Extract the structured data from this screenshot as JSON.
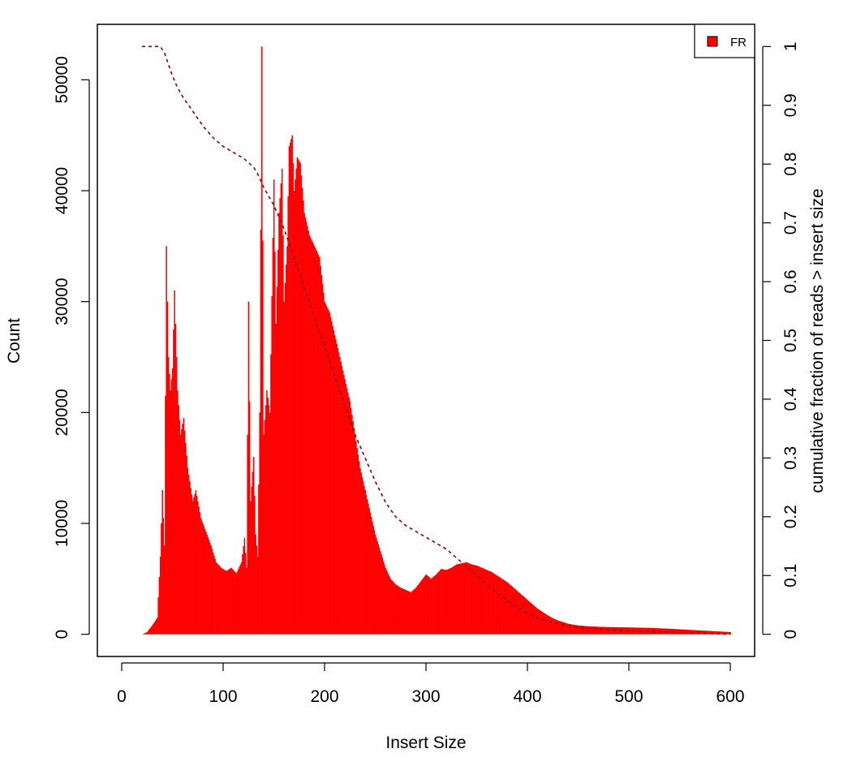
{
  "chart_data": {
    "type": "bar",
    "xlabel": "Insert Size",
    "ylabel": "Count",
    "y2label": "cumulative fraction of reads > insert size",
    "xlim": [
      -24,
      624
    ],
    "ylim": [
      -2000,
      55000
    ],
    "y2lim": [
      0,
      1
    ],
    "x_ticks": [
      0,
      100,
      200,
      300,
      400,
      500,
      600
    ],
    "y_ticks": [
      0,
      10000,
      20000,
      30000,
      40000,
      50000
    ],
    "y2_ticks": [
      0,
      0.1,
      0.2,
      0.3,
      0.4,
      0.5,
      0.6,
      0.7,
      0.8,
      0.9,
      1
    ],
    "x_tick_labels": [
      "0",
      "100",
      "200",
      "300",
      "400",
      "500",
      "600"
    ],
    "y_tick_labels": [
      "0",
      "10000",
      "20000",
      "30000",
      "40000",
      "50000"
    ],
    "y2_tick_labels": [
      "0",
      "0.1",
      "0.2",
      "0.3",
      "0.4",
      "0.5",
      "0.6",
      "0.7",
      "0.8",
      "0.9",
      "1"
    ],
    "legend": {
      "position": "top-right",
      "entries": [
        {
          "label": "FR",
          "color": "#ff0000"
        }
      ]
    },
    "bar_color": "#ff0000",
    "cumulative_color": "#8b0000",
    "histogram": {
      "name": "FR",
      "points": [
        [
          20,
          0
        ],
        [
          25,
          200
        ],
        [
          30,
          800
        ],
        [
          35,
          1500
        ],
        [
          38,
          7000
        ],
        [
          40,
          13000
        ],
        [
          42,
          8000
        ],
        [
          44,
          35000
        ],
        [
          46,
          25000
        ],
        [
          48,
          22000
        ],
        [
          50,
          24000
        ],
        [
          52,
          31000
        ],
        [
          55,
          22000
        ],
        [
          58,
          18000
        ],
        [
          61,
          19500
        ],
        [
          65,
          15000
        ],
        [
          70,
          12000
        ],
        [
          73,
          13000
        ],
        [
          78,
          10500
        ],
        [
          82,
          9500
        ],
        [
          88,
          8000
        ],
        [
          93,
          6500
        ],
        [
          98,
          6000
        ],
        [
          103,
          5700
        ],
        [
          108,
          6000
        ],
        [
          113,
          5500
        ],
        [
          118,
          6500
        ],
        [
          121,
          8700
        ],
        [
          123,
          6000
        ],
        [
          125,
          30000
        ],
        [
          127,
          12000
        ],
        [
          130,
          16000
        ],
        [
          132,
          9000
        ],
        [
          134,
          7000
        ],
        [
          136,
          20000
        ],
        [
          138,
          53000
        ],
        [
          140,
          18000
        ],
        [
          143,
          22000
        ],
        [
          146,
          20000
        ],
        [
          150,
          41000
        ],
        [
          152,
          28000
        ],
        [
          155,
          38000
        ],
        [
          158,
          42000
        ],
        [
          160,
          30000
        ],
        [
          163,
          35000
        ],
        [
          165,
          44000
        ],
        [
          168,
          45000
        ],
        [
          170,
          40000
        ],
        [
          173,
          43000
        ],
        [
          176,
          42500
        ],
        [
          180,
          38000
        ],
        [
          185,
          36000
        ],
        [
          190,
          35000
        ],
        [
          195,
          34000
        ],
        [
          200,
          30000
        ],
        [
          205,
          29000
        ],
        [
          210,
          27000
        ],
        [
          215,
          25000
        ],
        [
          220,
          23000
        ],
        [
          225,
          21000
        ],
        [
          230,
          18000
        ],
        [
          235,
          15000
        ],
        [
          240,
          13000
        ],
        [
          245,
          11000
        ],
        [
          250,
          9000
        ],
        [
          255,
          7500
        ],
        [
          260,
          6000
        ],
        [
          265,
          5000
        ],
        [
          270,
          4500
        ],
        [
          275,
          4200
        ],
        [
          280,
          4000
        ],
        [
          285,
          3800
        ],
        [
          290,
          4200
        ],
        [
          295,
          4800
        ],
        [
          300,
          5400
        ],
        [
          305,
          5000
        ],
        [
          310,
          5400
        ],
        [
          315,
          5900
        ],
        [
          320,
          5800
        ],
        [
          325,
          6000
        ],
        [
          330,
          6300
        ],
        [
          335,
          6400
        ],
        [
          340,
          6500
        ],
        [
          345,
          6300
        ],
        [
          350,
          6200
        ],
        [
          355,
          6000
        ],
        [
          360,
          5800
        ],
        [
          365,
          5600
        ],
        [
          370,
          5300
        ],
        [
          375,
          5000
        ],
        [
          380,
          4700
        ],
        [
          385,
          4300
        ],
        [
          390,
          3900
        ],
        [
          395,
          3500
        ],
        [
          400,
          3100
        ],
        [
          405,
          2700
        ],
        [
          410,
          2300
        ],
        [
          415,
          2000
        ],
        [
          420,
          1700
        ],
        [
          425,
          1450
        ],
        [
          430,
          1250
        ],
        [
          435,
          1100
        ],
        [
          440,
          950
        ],
        [
          445,
          870
        ],
        [
          450,
          800
        ],
        [
          460,
          720
        ],
        [
          470,
          680
        ],
        [
          480,
          650
        ],
        [
          490,
          640
        ],
        [
          500,
          620
        ],
        [
          510,
          600
        ],
        [
          520,
          580
        ],
        [
          530,
          540
        ],
        [
          540,
          500
        ],
        [
          550,
          450
        ],
        [
          560,
          400
        ],
        [
          570,
          350
        ],
        [
          580,
          300
        ],
        [
          590,
          250
        ],
        [
          600,
          200
        ]
      ]
    },
    "cumulative": {
      "points": [
        [
          20,
          1.0
        ],
        [
          38,
          1.0
        ],
        [
          42,
          0.99
        ],
        [
          46,
          0.97
        ],
        [
          50,
          0.95
        ],
        [
          55,
          0.93
        ],
        [
          60,
          0.915
        ],
        [
          70,
          0.89
        ],
        [
          80,
          0.865
        ],
        [
          90,
          0.845
        ],
        [
          100,
          0.83
        ],
        [
          110,
          0.82
        ],
        [
          120,
          0.81
        ],
        [
          130,
          0.795
        ],
        [
          135,
          0.78
        ],
        [
          140,
          0.76
        ],
        [
          150,
          0.73
        ],
        [
          160,
          0.69
        ],
        [
          170,
          0.64
        ],
        [
          180,
          0.59
        ],
        [
          190,
          0.54
        ],
        [
          200,
          0.49
        ],
        [
          210,
          0.44
        ],
        [
          220,
          0.39
        ],
        [
          230,
          0.34
        ],
        [
          240,
          0.3
        ],
        [
          250,
          0.26
        ],
        [
          260,
          0.225
        ],
        [
          270,
          0.2
        ],
        [
          280,
          0.185
        ],
        [
          290,
          0.175
        ],
        [
          300,
          0.165
        ],
        [
          310,
          0.155
        ],
        [
          320,
          0.145
        ],
        [
          330,
          0.13
        ],
        [
          340,
          0.115
        ],
        [
          350,
          0.1
        ],
        [
          360,
          0.085
        ],
        [
          370,
          0.07
        ],
        [
          380,
          0.058
        ],
        [
          390,
          0.046
        ],
        [
          400,
          0.036
        ],
        [
          410,
          0.028
        ],
        [
          420,
          0.022
        ],
        [
          430,
          0.018
        ],
        [
          440,
          0.015
        ],
        [
          450,
          0.012
        ],
        [
          480,
          0.008
        ],
        [
          500,
          0.006
        ],
        [
          550,
          0.003
        ],
        [
          600,
          0.0
        ]
      ]
    }
  }
}
